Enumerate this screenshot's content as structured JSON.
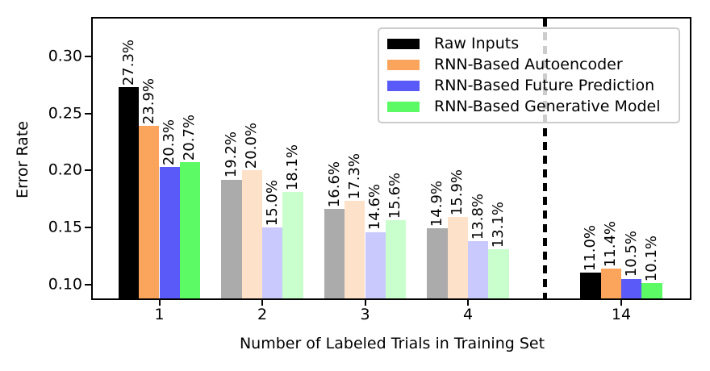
{
  "figure": {
    "background": "#ffffff",
    "frame_color": "#000000"
  },
  "chart_data": {
    "type": "bar",
    "title": "",
    "xlabel": "Number of Labeled Trials in Training Set",
    "ylabel": "Error Rate",
    "categories": [
      "1",
      "2",
      "3",
      "4",
      "14"
    ],
    "series": [
      {
        "name": "Raw Inputs",
        "color": "#000000",
        "values": [
          27.3,
          19.2,
          16.6,
          14.9,
          11.0
        ],
        "labels": [
          "27.3%",
          "19.2%",
          "16.6%",
          "14.9%",
          "11.0%"
        ]
      },
      {
        "name": "RNN-Based Autoencoder",
        "color": "#FBA55C",
        "values": [
          23.9,
          20.0,
          17.3,
          15.9,
          11.4
        ],
        "labels": [
          "23.9%",
          "20.0%",
          "17.3%",
          "15.9%",
          "11.4%"
        ]
      },
      {
        "name": "RNN-Based Future Prediction",
        "color": "#5A5AF8",
        "values": [
          20.3,
          15.0,
          14.6,
          13.8,
          10.5
        ],
        "labels": [
          "20.3%",
          "15.0%",
          "14.6%",
          "13.8%",
          "10.5%"
        ]
      },
      {
        "name": "RNN-Based Generative Model",
        "color": "#5CFB66",
        "values": [
          20.7,
          18.1,
          15.6,
          13.1,
          10.1
        ],
        "labels": [
          "20.7%",
          "18.1%",
          "15.6%",
          "13.1%",
          "10.1%"
        ]
      }
    ],
    "emphasis": {
      "full_categories": [
        "1",
        "14"
      ],
      "faded_categories": [
        "2",
        "3",
        "4"
      ],
      "faded_alpha": 0.33
    },
    "yticks": [
      "0.30",
      "0.25",
      "0.20",
      "0.15",
      "0.10"
    ],
    "ylim": [
      0.0863,
      0.333
    ],
    "grid": false,
    "legend_position": "upper right",
    "divider_line": {
      "style": "dashed",
      "color": "#000000",
      "between": [
        "4",
        "14"
      ]
    }
  }
}
